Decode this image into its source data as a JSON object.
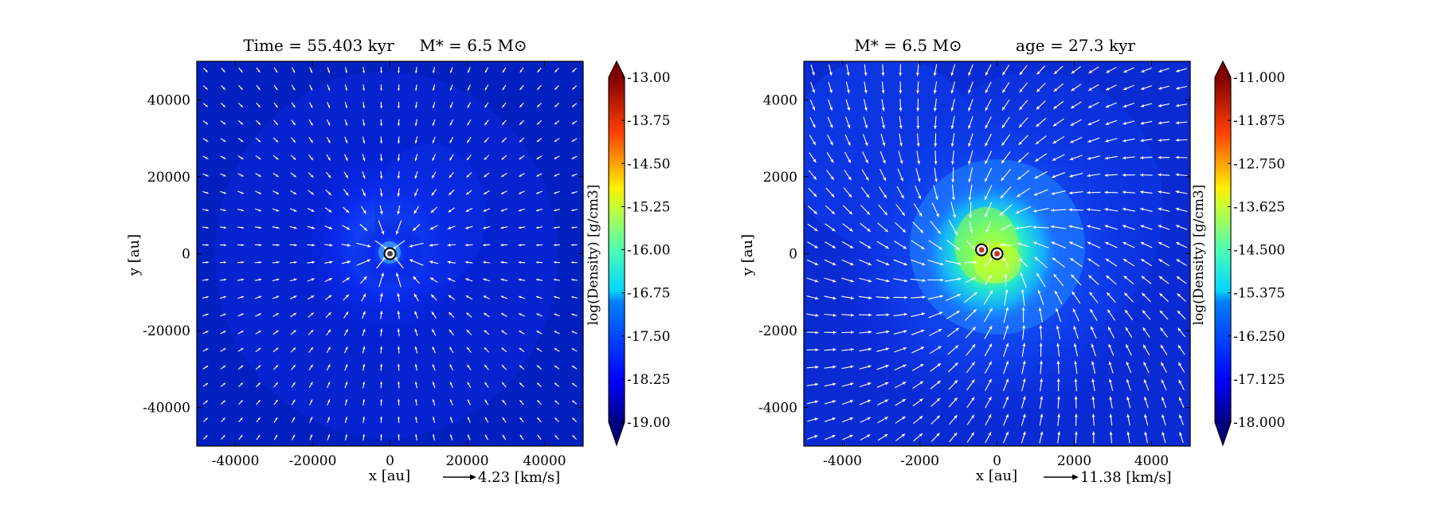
{
  "chart_data": [
    {
      "type": "heatmap",
      "title_parts": {
        "time": "Time = 55.403 kyr",
        "mass": "M* = 6.5 M⊙"
      },
      "xlabel": "x [au]",
      "ylabel": "y [au]",
      "xlim": [
        -50000,
        50000
      ],
      "ylim": [
        -50000,
        50000
      ],
      "xticks": [
        -40000,
        -20000,
        0,
        20000,
        40000
      ],
      "yticks": [
        40000,
        20000,
        0,
        -20000,
        -40000
      ],
      "velocity_key": "4.23 [km/s]",
      "colorbar": {
        "label": "log(Density) [g/cm3]",
        "min": -19.0,
        "max": -13.0,
        "ticks": [
          "-13.00",
          "-13.75",
          "-14.50",
          "-15.25",
          "-16.00",
          "-16.75",
          "-17.50",
          "-18.25",
          "-19.00"
        ]
      },
      "background_log_density": -18.7,
      "peak_log_density": -15.8,
      "sinks": [
        {
          "x": 0,
          "y": 0
        }
      ],
      "flow": "radial infall toward central sink"
    },
    {
      "type": "heatmap",
      "title_parts": {
        "mass": "M* = 6.5 M⊙",
        "age": "age = 27.3 kyr"
      },
      "xlabel": "x [au]",
      "ylabel": "y [au]",
      "xlim": [
        -5000,
        5000
      ],
      "ylim": [
        -5000,
        5000
      ],
      "xticks": [
        -4000,
        -2000,
        0,
        2000,
        4000
      ],
      "yticks": [
        4000,
        2000,
        0,
        -2000,
        -4000
      ],
      "velocity_key": "11.38 [km/s]",
      "colorbar": {
        "label": "log(Density) [g/cm3]",
        "min": -18.0,
        "max": -11.0,
        "ticks": [
          "-11.000",
          "-11.875",
          "-12.750",
          "-13.625",
          "-14.500",
          "-15.375",
          "-16.250",
          "-17.125",
          "-18.000"
        ]
      },
      "background_log_density": -17.2,
      "peak_log_density": -13.6,
      "sinks": [
        {
          "x": -400,
          "y": 100
        },
        {
          "x": 0,
          "y": 0
        }
      ],
      "flow": "infall with rotation around binary sinks"
    }
  ]
}
